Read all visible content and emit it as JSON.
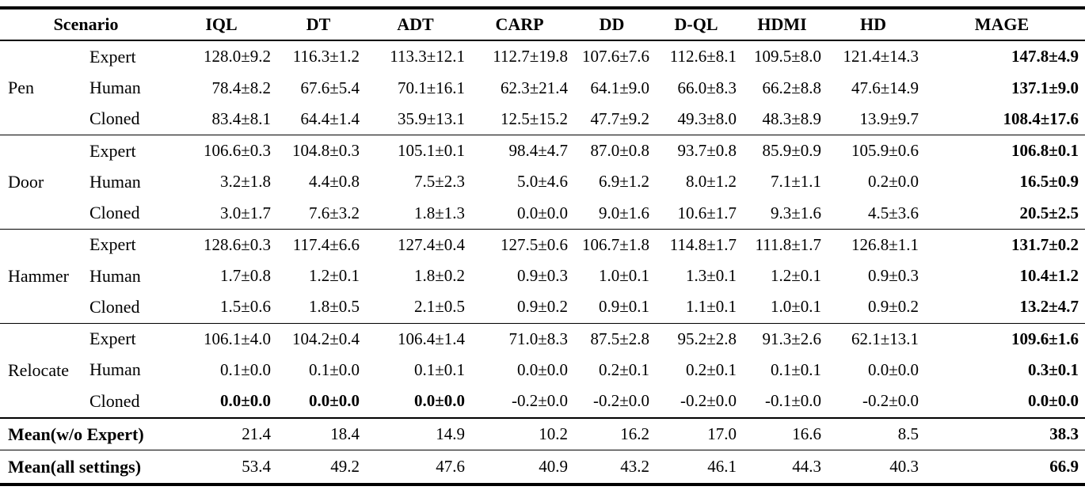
{
  "colors": {
    "text": "#000000",
    "background": "#ffffff",
    "rule": "#000000"
  },
  "table": {
    "header": {
      "scenario_label": "Scenario",
      "methods": [
        "IQL",
        "DT",
        "ADT",
        "CARP",
        "DD",
        "D-QL",
        "HDMI",
        "HD",
        "MAGE"
      ]
    },
    "groups": [
      {
        "scenario": "Pen",
        "rows": [
          {
            "setting": "Expert",
            "values": [
              "128.0±9.2",
              "116.3±1.2",
              "113.3±12.1",
              "112.7±19.8",
              "107.6±7.6",
              "112.6±8.1",
              "109.5±8.0",
              "121.4±14.3",
              "147.8±4.9"
            ],
            "bold": [
              8
            ]
          },
          {
            "setting": "Human",
            "values": [
              "78.4±8.2",
              "67.6±5.4",
              "70.1±16.1",
              "62.3±21.4",
              "64.1±9.0",
              "66.0±8.3",
              "66.2±8.8",
              "47.6±14.9",
              "137.1±9.0"
            ],
            "bold": [
              8
            ]
          },
          {
            "setting": "Cloned",
            "values": [
              "83.4±8.1",
              "64.4±1.4",
              "35.9±13.1",
              "12.5±15.2",
              "47.7±9.2",
              "49.3±8.0",
              "48.3±8.9",
              "13.9±9.7",
              "108.4±17.6"
            ],
            "bold": [
              8
            ]
          }
        ]
      },
      {
        "scenario": "Door",
        "rows": [
          {
            "setting": "Expert",
            "values": [
              "106.6±0.3",
              "104.8±0.3",
              "105.1±0.1",
              "98.4±4.7",
              "87.0±0.8",
              "93.7±0.8",
              "85.9±0.9",
              "105.9±0.6",
              "106.8±0.1"
            ],
            "bold": [
              8
            ]
          },
          {
            "setting": "Human",
            "values": [
              "3.2±1.8",
              "4.4±0.8",
              "7.5±2.3",
              "5.0±4.6",
              "6.9±1.2",
              "8.0±1.2",
              "7.1±1.1",
              "0.2±0.0",
              "16.5±0.9"
            ],
            "bold": [
              8
            ]
          },
          {
            "setting": "Cloned",
            "values": [
              "3.0±1.7",
              "7.6±3.2",
              "1.8±1.3",
              "0.0±0.0",
              "9.0±1.6",
              "10.6±1.7",
              "9.3±1.6",
              "4.5±3.6",
              "20.5±2.5"
            ],
            "bold": [
              8
            ]
          }
        ]
      },
      {
        "scenario": "Hammer",
        "rows": [
          {
            "setting": "Expert",
            "values": [
              "128.6±0.3",
              "117.4±6.6",
              "127.4±0.4",
              "127.5±0.6",
              "106.7±1.8",
              "114.8±1.7",
              "111.8±1.7",
              "126.8±1.1",
              "131.7±0.2"
            ],
            "bold": [
              8
            ]
          },
          {
            "setting": "Human",
            "values": [
              "1.7±0.8",
              "1.2±0.1",
              "1.8±0.2",
              "0.9±0.3",
              "1.0±0.1",
              "1.3±0.1",
              "1.2±0.1",
              "0.9±0.3",
              "10.4±1.2"
            ],
            "bold": [
              8
            ]
          },
          {
            "setting": "Cloned",
            "values": [
              "1.5±0.6",
              "1.8±0.5",
              "2.1±0.5",
              "0.9±0.2",
              "0.9±0.1",
              "1.1±0.1",
              "1.0±0.1",
              "0.9±0.2",
              "13.2±4.7"
            ],
            "bold": [
              8
            ]
          }
        ]
      },
      {
        "scenario": "Relocate",
        "rows": [
          {
            "setting": "Expert",
            "values": [
              "106.1±4.0",
              "104.2±0.4",
              "106.4±1.4",
              "71.0±8.3",
              "87.5±2.8",
              "95.2±2.8",
              "91.3±2.6",
              "62.1±13.1",
              "109.6±1.6"
            ],
            "bold": [
              8
            ]
          },
          {
            "setting": "Human",
            "values": [
              "0.1±0.0",
              "0.1±0.0",
              "0.1±0.1",
              "0.0±0.0",
              "0.2±0.1",
              "0.2±0.1",
              "0.1±0.1",
              "0.0±0.0",
              "0.3±0.1"
            ],
            "bold": [
              8
            ]
          },
          {
            "setting": "Cloned",
            "values": [
              "0.0±0.0",
              "0.0±0.0",
              "0.0±0.0",
              "-0.2±0.0",
              "-0.2±0.0",
              "-0.2±0.0",
              "-0.1±0.0",
              "-0.2±0.0",
              "0.0±0.0"
            ],
            "bold": [
              0,
              1,
              2,
              8
            ]
          }
        ]
      }
    ],
    "summary_rows": [
      {
        "label": "Mean(w/o Expert)",
        "values": [
          "21.4",
          "18.4",
          "14.9",
          "10.2",
          "16.2",
          "17.0",
          "16.6",
          "8.5",
          "38.3"
        ],
        "bold": [
          8
        ]
      },
      {
        "label": "Mean(all settings)",
        "values": [
          "53.4",
          "49.2",
          "47.6",
          "40.9",
          "43.2",
          "46.1",
          "44.3",
          "40.3",
          "66.9"
        ],
        "bold": [
          8
        ]
      }
    ]
  }
}
